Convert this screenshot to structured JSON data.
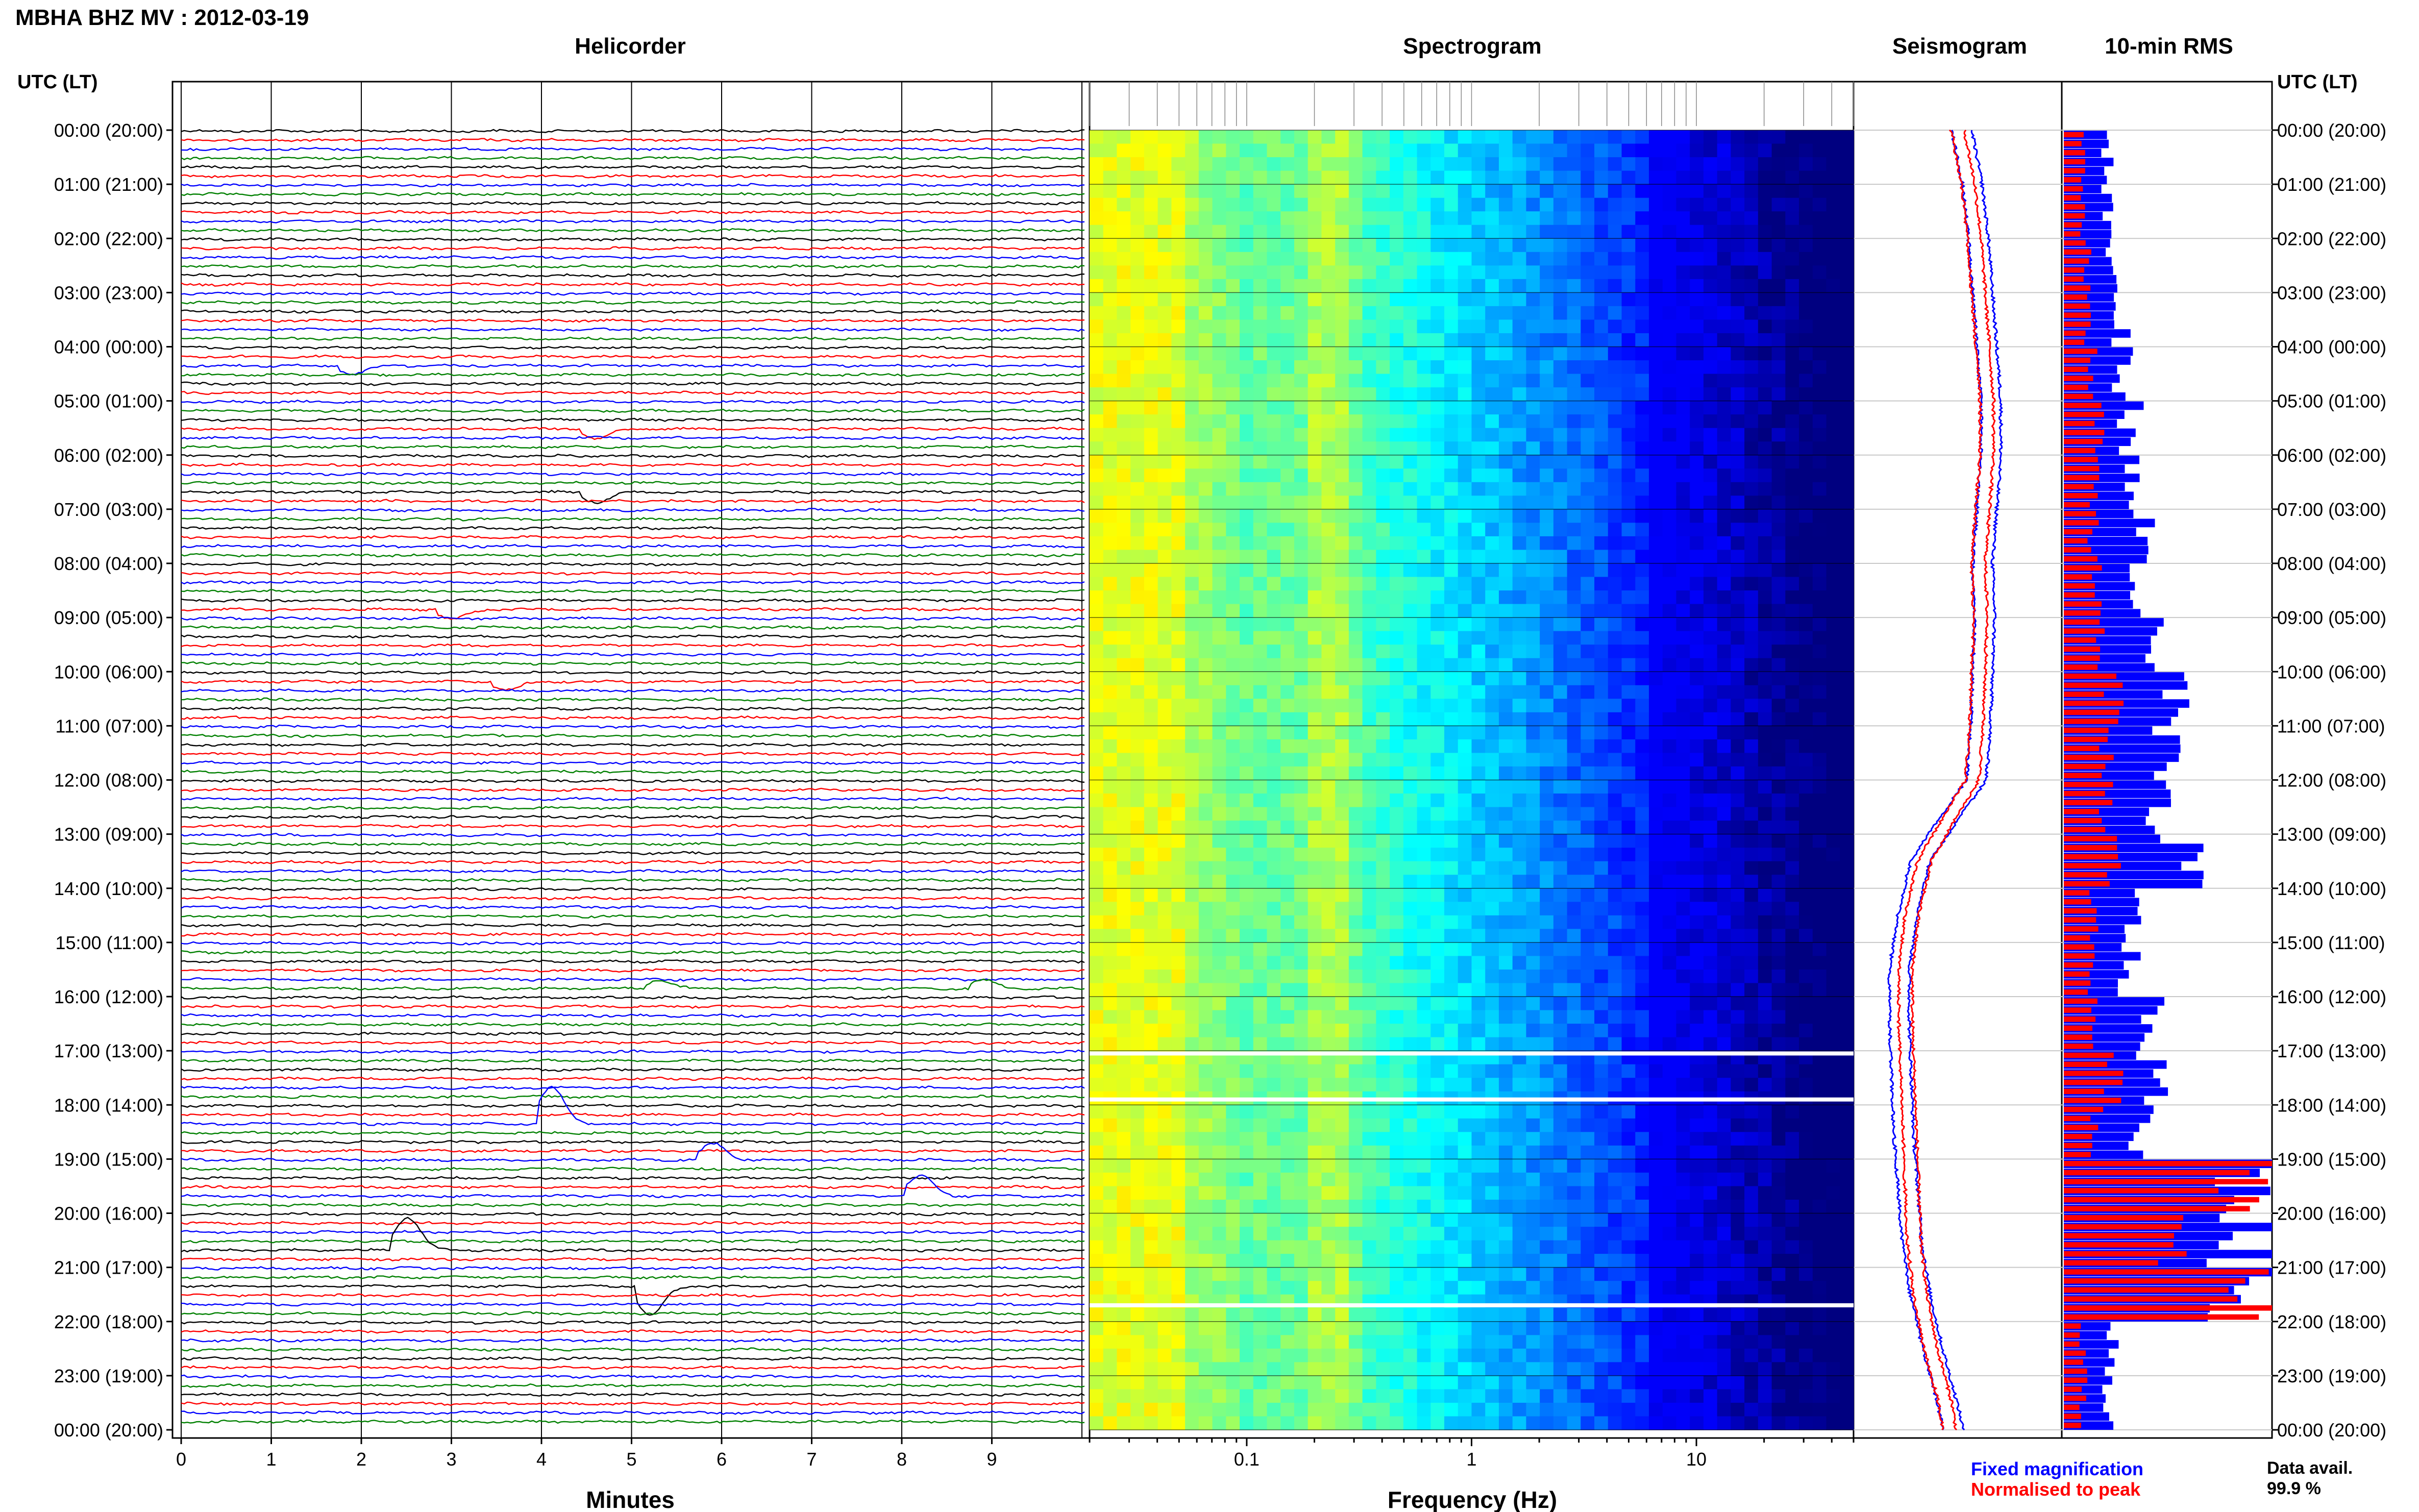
{
  "header": {
    "title": "MBHA BHZ MV : 2012-03-19",
    "utc_label_left": "UTC (LT)",
    "utc_label_right": "UTC (LT)"
  },
  "panels": {
    "helicorder": "Helicorder",
    "spectrogram": "Spectrogram",
    "seismogram": "Seismogram",
    "rms": "10-min RMS"
  },
  "time_labels": [
    "00:00 (20:00)",
    "01:00 (21:00)",
    "02:00 (22:00)",
    "03:00 (23:00)",
    "04:00 (00:00)",
    "05:00 (01:00)",
    "06:00 (02:00)",
    "07:00 (03:00)",
    "08:00 (04:00)",
    "09:00 (05:00)",
    "10:00 (06:00)",
    "11:00 (07:00)",
    "12:00 (08:00)",
    "13:00 (09:00)",
    "14:00 (10:00)",
    "15:00 (11:00)",
    "16:00 (12:00)",
    "17:00 (13:00)",
    "18:00 (14:00)",
    "19:00 (15:00)",
    "20:00 (16:00)",
    "21:00 (17:00)",
    "22:00 (18:00)",
    "23:00 (19:00)",
    "00:00 (20:00)"
  ],
  "footer": {
    "legend_fixed": "Fixed magnification",
    "legend_normalised": "Normalised to peak",
    "data_avail_label": "Data avail.",
    "data_avail_value": "99.9 %"
  },
  "colors": {
    "trace_cycle": [
      "#000000",
      "#ff0000",
      "#0000ff",
      "#008000"
    ],
    "fixed": "#0000ff",
    "normalised": "#ff0000",
    "spectrogram_bg": "#00008b"
  },
  "chart_data": [
    {
      "type": "line",
      "name": "helicorder",
      "title": "Helicorder",
      "xlabel": "Minutes",
      "xticks": [
        "0",
        "1",
        "2",
        "3",
        "4",
        "5",
        "6",
        "7",
        "8",
        "9"
      ],
      "xlim": [
        0,
        10
      ],
      "rows": 144,
      "grid": true,
      "events": [
        {
          "minute": 4.0,
          "hour": 18.3,
          "amp": 1.8
        },
        {
          "minute": 2.4,
          "hour": 20.6,
          "amp": 1.6
        },
        {
          "minute": 5.1,
          "hour": 21.3,
          "amp": -1.4
        },
        {
          "minute": 8.1,
          "hour": 19.6,
          "amp": 1.0
        },
        {
          "minute": 5.8,
          "hour": 19.0,
          "amp": 0.8
        },
        {
          "minute": 2.9,
          "hour": 8.8,
          "amp": -0.5
        },
        {
          "minute": 4.5,
          "hour": 5.5,
          "amp": -0.5
        },
        {
          "minute": 4.5,
          "hour": 6.7,
          "amp": -0.5
        },
        {
          "minute": 3.5,
          "hour": 10.1,
          "amp": -0.4
        },
        {
          "minute": 8.8,
          "hour": 15.8,
          "amp": 0.4
        },
        {
          "minute": 5.2,
          "hour": 15.8,
          "amp": 0.4
        },
        {
          "minute": 1.8,
          "hour": 4.4,
          "amp": -0.4
        }
      ]
    },
    {
      "type": "heatmap",
      "name": "spectrogram",
      "title": "Spectrogram",
      "xlabel": "Frequency (Hz)",
      "xscale": "log",
      "xticks": [
        "0.1",
        "1",
        "10"
      ],
      "xlim": [
        0.02,
        50
      ],
      "colormap": "jet",
      "gaps_hours": [
        17.05,
        17.9,
        21.7
      ]
    },
    {
      "type": "line",
      "name": "seismogram",
      "title": "Seismogram",
      "profile": [
        {
          "hour": 0,
          "fixed": 0.52,
          "normalised": 0.5
        },
        {
          "hour": 1,
          "fixed": 0.57,
          "normalised": 0.55
        },
        {
          "hour": 2,
          "fixed": 0.6,
          "normalised": 0.58
        },
        {
          "hour": 3,
          "fixed": 0.62,
          "normalised": 0.6
        },
        {
          "hour": 4,
          "fixed": 0.64,
          "normalised": 0.62
        },
        {
          "hour": 5,
          "fixed": 0.66,
          "normalised": 0.64
        },
        {
          "hour": 6,
          "fixed": 0.66,
          "normalised": 0.64
        },
        {
          "hour": 7,
          "fixed": 0.64,
          "normalised": 0.62
        },
        {
          "hour": 8,
          "fixed": 0.62,
          "normalised": 0.6
        },
        {
          "hour": 9,
          "fixed": 0.63,
          "normalised": 0.61
        },
        {
          "hour": 10,
          "fixed": 0.62,
          "normalised": 0.6
        },
        {
          "hour": 11,
          "fixed": 0.61,
          "normalised": 0.59
        },
        {
          "hour": 12,
          "fixed": 0.59,
          "normalised": 0.57
        },
        {
          "hour": 12.7,
          "fixed": 0.46,
          "normalised": 0.46
        },
        {
          "hour": 13.5,
          "fixed": 0.32,
          "normalised": 0.34
        },
        {
          "hour": 14.5,
          "fixed": 0.26,
          "normalised": 0.28
        },
        {
          "hour": 15.5,
          "fixed": 0.22,
          "normalised": 0.25
        },
        {
          "hour": 16.5,
          "fixed": 0.22,
          "normalised": 0.25
        },
        {
          "hour": 17.5,
          "fixed": 0.23,
          "normalised": 0.26
        },
        {
          "hour": 18.5,
          "fixed": 0.24,
          "normalised": 0.27
        },
        {
          "hour": 19.5,
          "fixed": 0.26,
          "normalised": 0.28
        },
        {
          "hour": 20.5,
          "fixed": 0.28,
          "normalised": 0.29
        },
        {
          "hour": 21.5,
          "fixed": 0.32,
          "normalised": 0.32
        },
        {
          "hour": 22.5,
          "fixed": 0.38,
          "normalised": 0.37
        },
        {
          "hour": 23.5,
          "fixed": 0.45,
          "normalised": 0.44
        },
        {
          "hour": 24,
          "fixed": 0.48,
          "normalised": 0.46
        }
      ]
    },
    {
      "type": "bar",
      "name": "rms",
      "title": "10-min RMS",
      "orientation": "horizontal",
      "bins": 144,
      "hourly_fixed": [
        0.22,
        0.22,
        0.24,
        0.28,
        0.3,
        0.34,
        0.33,
        0.4,
        0.38,
        0.42,
        0.55,
        0.5,
        0.45,
        0.6,
        0.35,
        0.33,
        0.42,
        0.45,
        0.4,
        0.95,
        0.9,
        0.9,
        0.25,
        0.22
      ],
      "hourly_normalised": [
        0.09,
        0.09,
        0.12,
        0.12,
        0.15,
        0.17,
        0.15,
        0.15,
        0.17,
        0.2,
        0.25,
        0.22,
        0.22,
        0.25,
        0.15,
        0.15,
        0.15,
        0.25,
        0.17,
        0.95,
        0.6,
        0.95,
        0.1,
        0.1
      ]
    }
  ]
}
